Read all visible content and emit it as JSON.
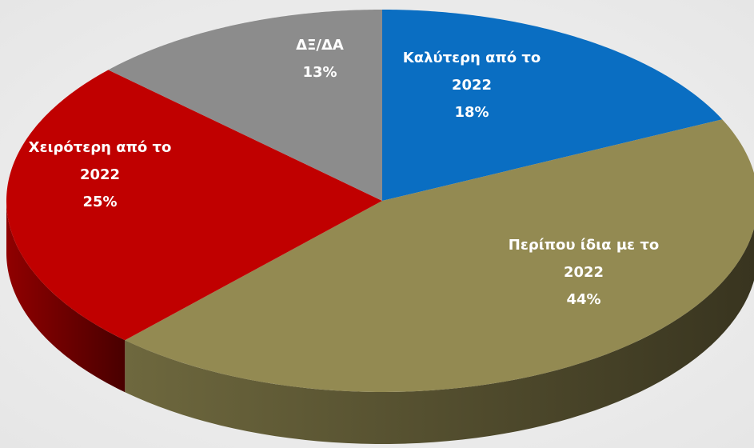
{
  "chart_data": {
    "type": "pie",
    "categories": [
      "Καλύτερη από το 2022",
      "Περίπου ίδια με το 2022",
      "Χειρότερη από το 2022",
      "ΔΞ/ΔΑ"
    ],
    "values": [
      18,
      44,
      25,
      13
    ],
    "value_labels": [
      "18%",
      "44%",
      "25%",
      "13%"
    ],
    "colors": [
      "#0a6ec2",
      "#938a52",
      "#c00000",
      "#8c8c8c"
    ]
  }
}
